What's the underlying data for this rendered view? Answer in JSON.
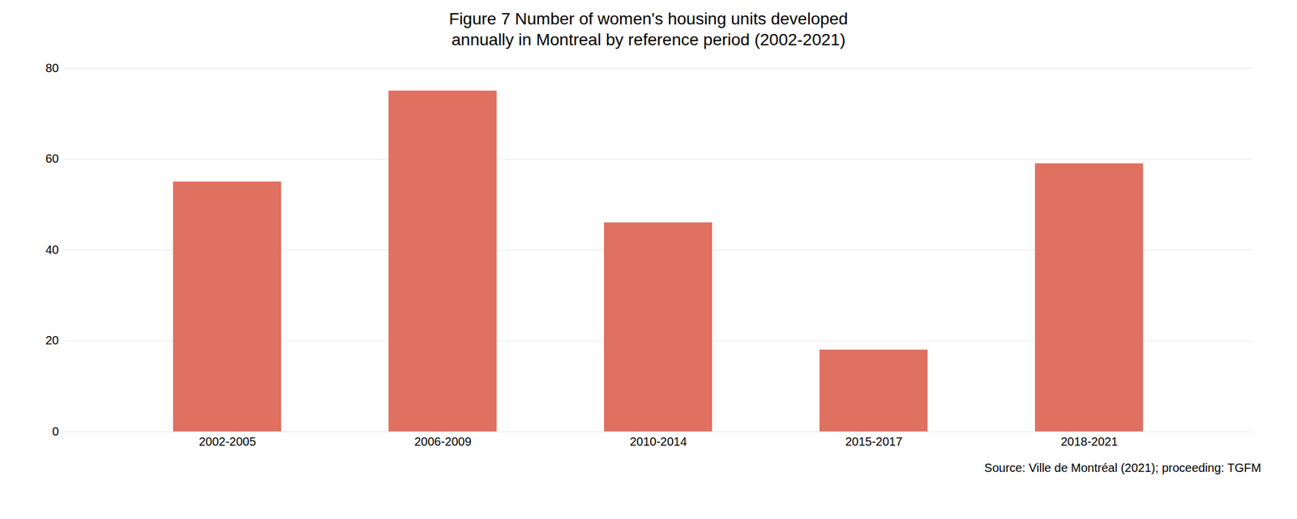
{
  "chart_data": {
    "type": "bar",
    "title": "Figure 7 Number of women's housing units developed\nannually in Montreal by reference period (2002-2021)",
    "categories": [
      "2002-2005",
      "2006-2009",
      "2010-2014",
      "2015-2017",
      "2018-2021"
    ],
    "values": [
      55,
      75,
      46,
      18,
      59
    ],
    "color": "#e07060",
    "ylim": [
      0,
      80
    ],
    "yticks": [
      0,
      20,
      40,
      60,
      80
    ],
    "grid": true,
    "source": "Source: Ville de Montréal (2021); proceeding: TGFM"
  }
}
